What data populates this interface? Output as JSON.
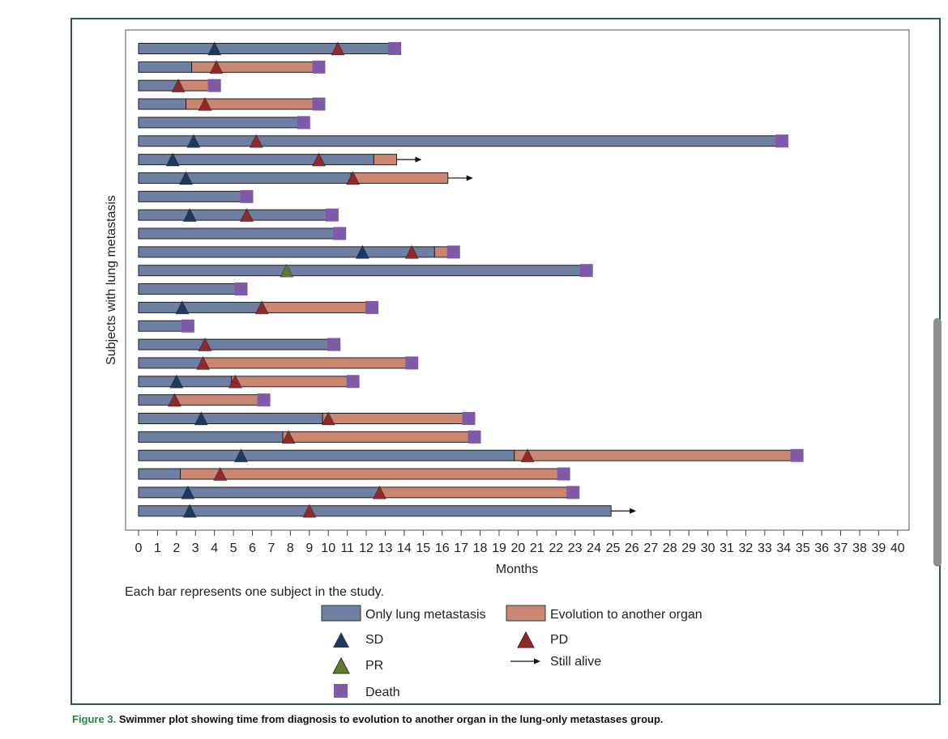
{
  "figure": {
    "caption_label": "Figure 3.",
    "caption_text": "Swimmer plot showing time from diagnosis to evolution to another organ in the lung-only metastases group.",
    "footnote": "Each bar represents one subject in the study."
  },
  "colors": {
    "lung": "#6e7fa3",
    "evolution": "#c98772",
    "sd": "#1f3a5f",
    "pd": "#8e2a2a",
    "pr": "#5f7a2e",
    "death": "#7e5aa8",
    "frame": "#2e5a3a"
  },
  "legend": {
    "lung": "Only lung metastasis",
    "evolution": "Evolution to another organ",
    "sd": "SD",
    "pd": "PD",
    "pr": "PR",
    "alive": "Still alive",
    "death": "Death"
  },
  "chart_data": {
    "type": "swimmer",
    "xlabel": "Months",
    "ylabel": "Subjects with lung metastasis",
    "xlim": [
      0,
      40
    ],
    "xticks": [
      0,
      1,
      2,
      3,
      4,
      5,
      6,
      7,
      8,
      9,
      10,
      11,
      12,
      13,
      14,
      15,
      16,
      17,
      18,
      19,
      20,
      21,
      22,
      23,
      24,
      25,
      26,
      27,
      28,
      29,
      30,
      31,
      32,
      33,
      34,
      35,
      36,
      37,
      38,
      39,
      40
    ],
    "grid": false,
    "legend_position": "bottom",
    "subjects": [
      {
        "lung": 13.5,
        "end": 13.5,
        "sd": 4.0,
        "pd": 10.5,
        "death": true
      },
      {
        "lung": 2.8,
        "end": 9.5,
        "pd": 4.1,
        "death": true
      },
      {
        "lung": 2.1,
        "end": 4.0,
        "pd": 2.1,
        "death": true
      },
      {
        "lung": 2.5,
        "end": 9.5,
        "pd": 3.5,
        "death": true
      },
      {
        "lung": 8.7,
        "end": 8.7,
        "death": true
      },
      {
        "lung": 33.9,
        "end": 33.9,
        "sd": 2.9,
        "pd": 6.2,
        "death": true
      },
      {
        "lung": 12.4,
        "end": 13.6,
        "sd": 1.8,
        "pd": 9.5,
        "alive": true
      },
      {
        "lung": 11.2,
        "end": 16.3,
        "sd": 2.5,
        "pd": 11.3,
        "alive": true
      },
      {
        "lung": 5.7,
        "end": 5.7,
        "death": true
      },
      {
        "lung": 10.2,
        "end": 10.2,
        "sd": 2.7,
        "pd": 5.7,
        "death": true
      },
      {
        "lung": 10.6,
        "end": 10.6,
        "death": true
      },
      {
        "lung": 15.6,
        "end": 16.6,
        "sd": 11.8,
        "pd": 14.4,
        "death": true
      },
      {
        "lung": 23.6,
        "end": 23.6,
        "pr": 7.8,
        "death": true
      },
      {
        "lung": 5.4,
        "end": 5.4,
        "death": true
      },
      {
        "lung": 6.5,
        "end": 12.3,
        "sd": 2.3,
        "pd": 6.5,
        "death": true
      },
      {
        "lung": 2.6,
        "end": 2.6,
        "death": true
      },
      {
        "lung": 10.3,
        "end": 10.3,
        "pd": 3.5,
        "death": true
      },
      {
        "lung": 3.4,
        "end": 14.4,
        "pd": 3.4,
        "death": true
      },
      {
        "lung": 4.9,
        "end": 11.3,
        "sd": 2.0,
        "pd": 5.1,
        "death": true
      },
      {
        "lung": 1.9,
        "end": 6.6,
        "pd": 1.9,
        "death": true
      },
      {
        "lung": 9.7,
        "end": 17.4,
        "sd": 3.3,
        "pd": 10.0,
        "death": true
      },
      {
        "lung": 7.6,
        "end": 17.7,
        "pd": 7.9,
        "death": true
      },
      {
        "lung": 19.8,
        "end": 34.7,
        "sd": 5.4,
        "pd": 20.5,
        "death": true
      },
      {
        "lung": 2.2,
        "end": 22.4,
        "pd": 4.3,
        "death": true
      },
      {
        "lung": 12.7,
        "end": 22.9,
        "sd": 2.6,
        "pd": 12.7,
        "death": true
      },
      {
        "lung": 24.9,
        "end": 24.9,
        "sd": 2.7,
        "pd": 9.0,
        "alive": true
      }
    ]
  }
}
